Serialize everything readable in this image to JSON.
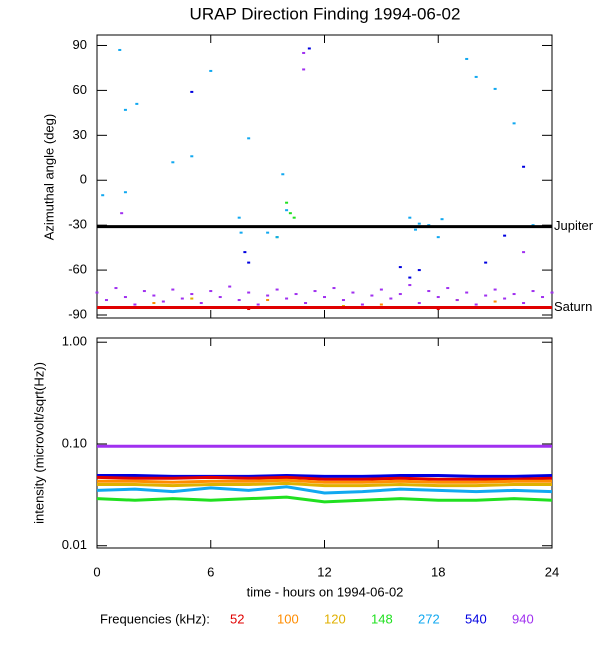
{
  "chart_data": [
    {
      "type": "scatter",
      "title": "URAP Direction Finding  1994-06-02",
      "y_label": "Azimuthal angle (deg)",
      "xlim": [
        0,
        24
      ],
      "xticks": [
        0,
        6,
        12,
        18,
        24
      ],
      "ylim": [
        -92,
        97
      ],
      "yticks": [
        -90,
        -60,
        -30,
        0,
        30,
        60,
        90
      ],
      "annotations": [
        {
          "label": "Jupiter",
          "value": -31,
          "color": "#000000"
        },
        {
          "label": "Saturn",
          "value": -85,
          "color": "#e00000"
        }
      ],
      "series": [
        {
          "name": "52",
          "color": "#e00000",
          "x": [
            0.5,
            2,
            4,
            6,
            8,
            10,
            12,
            14,
            16,
            18,
            20,
            22,
            23.5
          ],
          "values": [
            -85,
            -85,
            -85,
            -85,
            -86,
            -85,
            -85,
            -85,
            -85,
            -86,
            -85,
            -85,
            -85
          ]
        },
        {
          "name": "100",
          "color": "#ff8c00",
          "x": [
            3,
            9,
            15,
            21
          ],
          "values": [
            -82,
            -80,
            -83,
            -81
          ]
        },
        {
          "name": "120",
          "color": "#e0b000",
          "x": [
            5,
            13,
            19
          ],
          "values": [
            -79,
            -84,
            -80
          ]
        },
        {
          "name": "148",
          "color": "#20e020",
          "x": [
            9.5,
            10,
            10.2,
            10.4
          ],
          "values": [
            -38,
            -15,
            -22,
            -25
          ]
        },
        {
          "name": "272",
          "color": "#10a8f0",
          "x": [
            0.3,
            1.2,
            1.5,
            2.1,
            4,
            5,
            6,
            7.5,
            7.6,
            8,
            9,
            9.5,
            9.8,
            10,
            16.5,
            16.8,
            17,
            17.5,
            18,
            18.2,
            19.5,
            20,
            21,
            22,
            23,
            1.5,
            2
          ],
          "values": [
            -10,
            87,
            47,
            51,
            12,
            16,
            73,
            -25,
            -35,
            28,
            -35,
            -38,
            4,
            -20,
            -25,
            -33,
            -29,
            -30,
            -38,
            -26,
            81,
            69,
            61,
            38,
            -30,
            -8,
            -31
          ]
        },
        {
          "name": "540",
          "color": "#0000e0",
          "x": [
            5,
            7.8,
            8,
            11.2,
            16,
            16.5,
            17,
            20.5,
            21.5,
            22.5
          ],
          "values": [
            59,
            -48,
            -55,
            88,
            -58,
            -65,
            -60,
            -55,
            -37,
            9
          ]
        },
        {
          "name": "940",
          "color": "#a030f0",
          "x": [
            0,
            0.5,
            1,
            1.5,
            2,
            2.5,
            3,
            3.5,
            4,
            4.5,
            5,
            5.5,
            6,
            6.5,
            7,
            7.5,
            8,
            8.5,
            9,
            9.5,
            10,
            10.5,
            11,
            11.5,
            12,
            12.5,
            13,
            13.5,
            14,
            14.5,
            15,
            15.5,
            16,
            16.5,
            17,
            17.5,
            18,
            18.5,
            19,
            19.5,
            20,
            20.5,
            21,
            21.5,
            22,
            22.5,
            23,
            23.5,
            24,
            1.3,
            10.9,
            10.9,
            22.5
          ],
          "values": [
            -75,
            -80,
            -72,
            -78,
            -83,
            -74,
            -77,
            -81,
            -73,
            -79,
            -76,
            -82,
            -74,
            -78,
            -71,
            -80,
            -75,
            -83,
            -77,
            -73,
            -79,
            -76,
            -82,
            -74,
            -78,
            -72,
            -80,
            -75,
            -83,
            -77,
            -73,
            -79,
            -76,
            -70,
            -82,
            -74,
            -78,
            -72,
            -80,
            -75,
            -83,
            -77,
            -73,
            -79,
            -76,
            -82,
            -74,
            -78,
            -75,
            -22,
            85,
            74,
            -48
          ]
        }
      ]
    },
    {
      "type": "line",
      "y_label": "intensity (microvolt/sqrt(Hz))",
      "x_label": "time - hours on 1994-06-02",
      "log_y": true,
      "xlim": [
        0,
        24
      ],
      "xticks": [
        0,
        6,
        12,
        18,
        24
      ],
      "ylim": [
        0.0095,
        1.1
      ],
      "yticks": [
        0.01,
        {
          "value": 0.1,
          "label": "0.10"
        },
        {
          "value": 1,
          "label": "1.00"
        }
      ],
      "x": [
        0,
        2,
        4,
        6,
        8,
        10,
        12,
        14,
        16,
        18,
        20,
        22,
        24
      ],
      "series": [
        {
          "name": "940",
          "color": "#a030f0",
          "values": [
            0.095,
            0.095,
            0.095,
            0.095,
            0.095,
            0.095,
            0.095,
            0.095,
            0.095,
            0.095,
            0.095,
            0.095,
            0.095
          ]
        },
        {
          "name": "540",
          "color": "#0000e0",
          "values": [
            0.049,
            0.049,
            0.048,
            0.048,
            0.048,
            0.049,
            0.048,
            0.048,
            0.049,
            0.049,
            0.048,
            0.048,
            0.049
          ]
        },
        {
          "name": "52",
          "color": "#e00000",
          "values": [
            0.047,
            0.046,
            0.046,
            0.047,
            0.046,
            0.047,
            0.045,
            0.045,
            0.046,
            0.045,
            0.045,
            0.045,
            0.046
          ]
        },
        {
          "name": "100",
          "color": "#ff8c00",
          "values": [
            0.043,
            0.043,
            0.042,
            0.043,
            0.043,
            0.044,
            0.042,
            0.042,
            0.043,
            0.042,
            0.042,
            0.043,
            0.043
          ]
        },
        {
          "name": "120",
          "color": "#e0b000",
          "values": [
            0.04,
            0.04,
            0.039,
            0.04,
            0.04,
            0.041,
            0.039,
            0.039,
            0.04,
            0.039,
            0.039,
            0.04,
            0.04
          ]
        },
        {
          "name": "272",
          "color": "#10a8f0",
          "values": [
            0.035,
            0.036,
            0.034,
            0.037,
            0.035,
            0.038,
            0.033,
            0.034,
            0.036,
            0.035,
            0.034,
            0.035,
            0.034
          ]
        },
        {
          "name": "148",
          "color": "#20e020",
          "values": [
            0.029,
            0.028,
            0.029,
            0.028,
            0.029,
            0.03,
            0.027,
            0.028,
            0.029,
            0.028,
            0.028,
            0.029,
            0.028
          ]
        }
      ]
    }
  ],
  "legend": {
    "title": "Frequencies (kHz):"
  }
}
